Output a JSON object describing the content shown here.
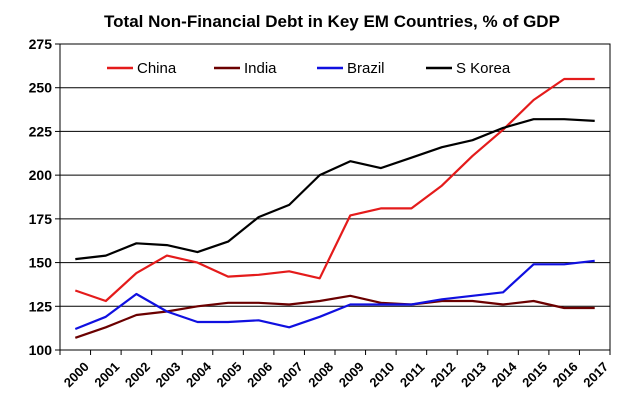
{
  "chart_data": {
    "type": "line",
    "title": "Total Non-Financial Debt in Key EM Countries, % of GDP",
    "xlabel": "",
    "ylabel": "",
    "ylim": [
      100,
      275
    ],
    "yticks": [
      100,
      125,
      150,
      175,
      200,
      225,
      250,
      275
    ],
    "grid": true,
    "legend_position": "top",
    "categories": [
      "2000",
      "2001",
      "2002",
      "2003",
      "2004",
      "2005",
      "2006",
      "2007",
      "2008",
      "2009",
      "2010",
      "2011",
      "2012",
      "2013",
      "2014",
      "2015",
      "2016",
      "2017"
    ],
    "series": [
      {
        "name": "China",
        "color": "#e41b1b",
        "values": [
          134,
          128,
          144,
          154,
          150,
          142,
          143,
          145,
          141,
          177,
          181,
          181,
          194,
          211,
          226,
          243,
          255,
          255
        ]
      },
      {
        "name": "India",
        "color": "#6b0000",
        "values": [
          107,
          113,
          120,
          122,
          125,
          127,
          127,
          126,
          128,
          131,
          127,
          126,
          128,
          128,
          126,
          128,
          124,
          124
        ]
      },
      {
        "name": "Brazil",
        "color": "#1010e0",
        "values": [
          112,
          119,
          132,
          122,
          116,
          116,
          117,
          113,
          119,
          126,
          126,
          126,
          129,
          131,
          133,
          149,
          149,
          151
        ]
      },
      {
        "name": "S Korea",
        "color": "#000000",
        "values": [
          152,
          154,
          161,
          160,
          156,
          162,
          176,
          183,
          200,
          208,
          204,
          210,
          216,
          220,
          227,
          232,
          232,
          231
        ]
      }
    ]
  }
}
